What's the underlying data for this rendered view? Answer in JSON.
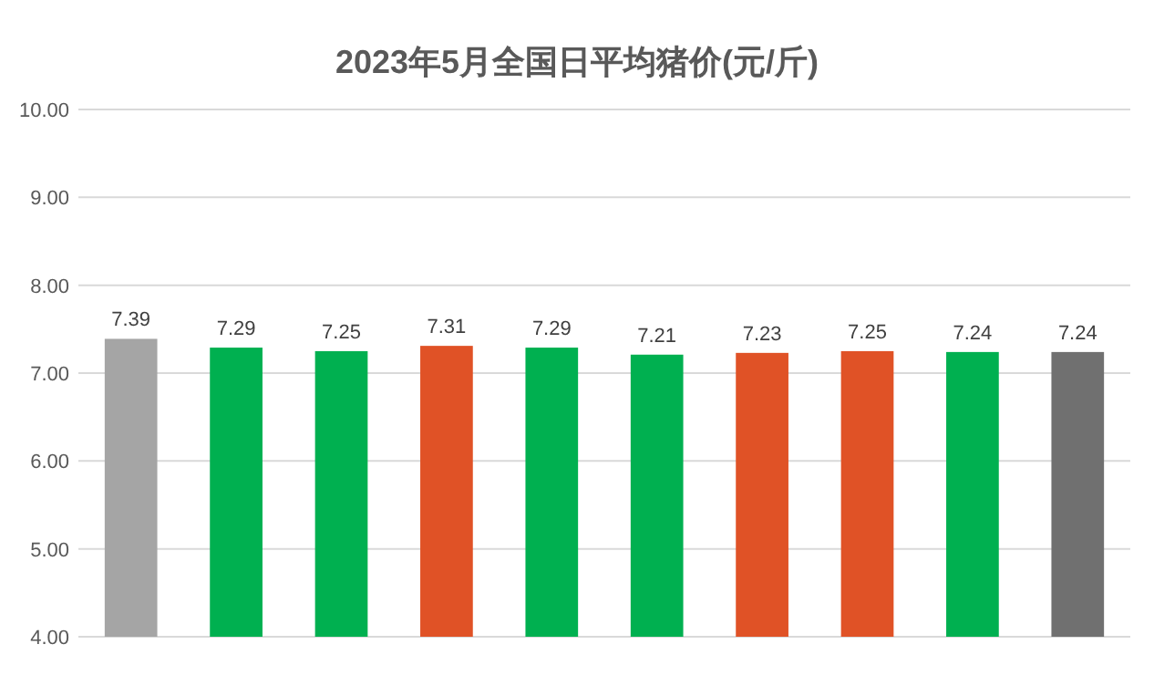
{
  "chart_data": {
    "type": "bar",
    "title": "2023年5月全国日平均猪价(元/斤)",
    "categories": [
      null,
      null,
      null,
      null,
      null,
      null,
      null,
      null,
      null,
      null
    ],
    "values": [
      7.39,
      7.29,
      7.25,
      7.31,
      7.29,
      7.21,
      7.23,
      7.25,
      7.24,
      7.24
    ],
    "colors": [
      "#a5a5a5",
      "#00b050",
      "#00b050",
      "#e05226",
      "#00b050",
      "#00b050",
      "#e05226",
      "#e05226",
      "#00b050",
      "#707070"
    ],
    "ylim": [
      4,
      10
    ],
    "yticks": [
      {
        "value": 4,
        "label": "4.00"
      },
      {
        "value": 5,
        "label": "5.00"
      },
      {
        "value": 6,
        "label": "6.00"
      },
      {
        "value": 7,
        "label": "7.00"
      },
      {
        "value": 8,
        "label": "8.00"
      },
      {
        "value": 9,
        "label": "9.00"
      },
      {
        "value": 10,
        "label": "10.00"
      }
    ],
    "grid": "y",
    "data_labels": true,
    "tick_labels": "y"
  }
}
